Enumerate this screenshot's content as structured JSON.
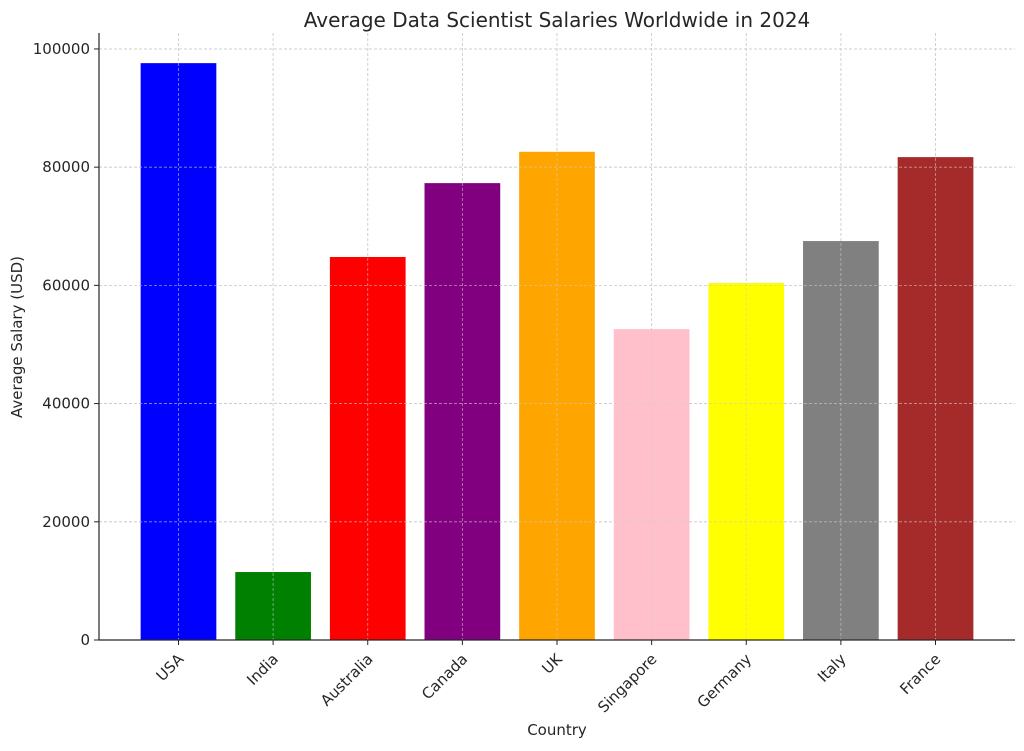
{
  "chart_data": {
    "type": "bar",
    "title": "Average Data Scientist Salaries Worldwide in 2024",
    "xlabel": "Country",
    "ylabel": "Average Salary (USD)",
    "categories": [
      "USA",
      "India",
      "Australia",
      "Canada",
      "UK",
      "Singapore",
      "Germany",
      "Italy",
      "France"
    ],
    "values": [
      97600,
      11500,
      64800,
      77300,
      82600,
      52600,
      60400,
      67500,
      81700
    ],
    "colors": [
      "#0000ff",
      "#008000",
      "#ff0000",
      "#800080",
      "#ffa500",
      "#ffc0cb",
      "#ffff00",
      "#808080",
      "#a52a2a"
    ],
    "ylim": [
      0,
      102700
    ],
    "yticks": [
      0,
      20000,
      40000,
      60000,
      80000,
      100000
    ],
    "ytick_labels": [
      "0",
      "20000",
      "40000",
      "60000",
      "80000",
      "100000"
    ],
    "grid": true
  }
}
